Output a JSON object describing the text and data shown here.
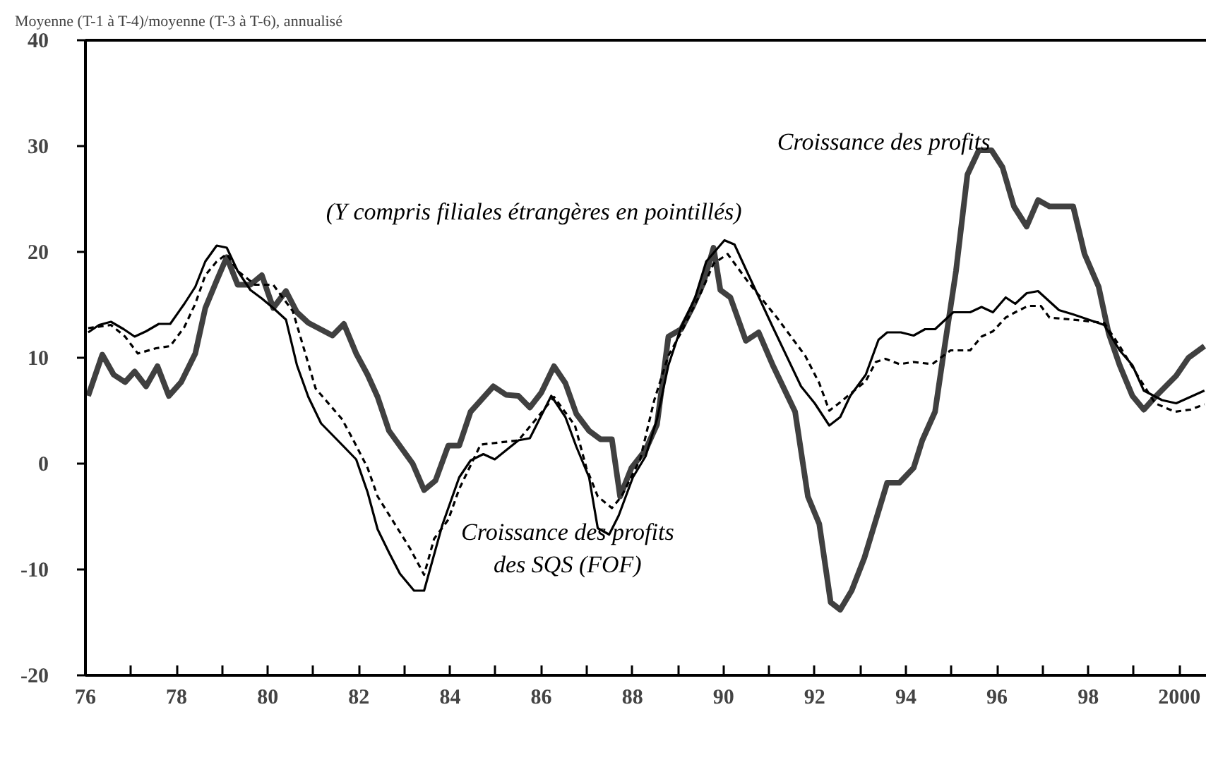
{
  "chart_data": {
    "type": "line",
    "title": "Moyenne (T-1 à T-4)/moyenne (T-3 à T-6), annualisé",
    "xlim": [
      1976,
      2000.6
    ],
    "ylim": [
      -20,
      40
    ],
    "xticks": [
      {
        "value": 1976,
        "label": "76"
      },
      {
        "value": 1977,
        "label": null
      },
      {
        "value": 1978,
        "label": "78"
      },
      {
        "value": 1979,
        "label": null
      },
      {
        "value": 1980,
        "label": "80"
      },
      {
        "value": 1981,
        "label": null
      },
      {
        "value": 1982,
        "label": "82"
      },
      {
        "value": 1983,
        "label": null
      },
      {
        "value": 1984,
        "label": "84"
      },
      {
        "value": 1985,
        "label": null
      },
      {
        "value": 1986,
        "label": "86"
      },
      {
        "value": 1987,
        "label": null
      },
      {
        "value": 1988,
        "label": "88"
      },
      {
        "value": 1989,
        "label": null
      },
      {
        "value": 1990,
        "label": "90"
      },
      {
        "value": 1991,
        "label": null
      },
      {
        "value": 1992,
        "label": "92"
      },
      {
        "value": 1993,
        "label": null
      },
      {
        "value": 1994,
        "label": "94"
      },
      {
        "value": 1995,
        "label": null
      },
      {
        "value": 1996,
        "label": "96"
      },
      {
        "value": 1997,
        "label": null
      },
      {
        "value": 1998,
        "label": "98"
      },
      {
        "value": 1999,
        "label": null
      },
      2000
    ],
    "yticks": [
      -20,
      -10,
      0,
      10,
      20,
      30,
      40
    ],
    "grid": false,
    "annotations": [
      "Croissance des profits",
      "(Y compris filiales étrangères en pointillés)",
      "Croissance des profits\ndes SQS (FOF)"
    ],
    "series": [
      {
        "color": "#404040",
        "line_style": "solid",
        "x": [
          1976.06,
          1976.37,
          1976.62,
          1976.87,
          1977.08,
          1977.33,
          1977.58,
          1977.83,
          1978.1,
          1978.41,
          1978.63,
          1978.88,
          1979.1,
          1979.34,
          1979.62,
          1979.87,
          1980.12,
          1980.4,
          1980.64,
          1980.89,
          1981.42,
          1981.67,
          1981.94,
          1982.19,
          1982.41,
          1982.66,
          1983.18,
          1983.43,
          1983.68,
          1983.96,
          1984.2,
          1984.45,
          1984.95,
          1985.23,
          1985.5,
          1985.75,
          1986.0,
          1986.28,
          1986.53,
          1986.77,
          1987.05,
          1987.3,
          1987.55,
          1987.73,
          1987.98,
          1988.29,
          1988.54,
          1988.79,
          1989.07,
          1989.31,
          1989.56,
          1989.78,
          1989.93,
          1990.15,
          1990.49,
          1990.77,
          1991.08,
          1991.57,
          1991.85,
          1992.1,
          1992.35,
          1992.56,
          1992.81,
          1993.09,
          1993.59,
          1993.86,
          1994.17,
          1994.36,
          1994.64,
          1994.82,
          1995.1,
          1995.35,
          1995.6,
          1995.88,
          1996.12,
          1996.37,
          1996.65,
          1996.9,
          1997.15,
          1997.67,
          1997.92,
          1998.23,
          1998.45,
          1998.69,
          1998.97,
          1999.22,
          1999.47,
          1999.93,
          2000.2,
          2000.55
        ],
        "values": [
          6.4,
          10.3,
          8.4,
          7.7,
          8.7,
          7.3,
          9.2,
          6.4,
          7.7,
          10.4,
          14.7,
          17.3,
          19.5,
          16.9,
          16.9,
          17.8,
          14.7,
          16.3,
          14.3,
          13.3,
          12.1,
          13.2,
          10.4,
          8.4,
          6.3,
          3.1,
          0,
          -2.5,
          -1.6,
          1.7,
          1.7,
          4.9,
          7.3,
          6.5,
          6.4,
          5.3,
          6.7,
          9.2,
          7.6,
          4.7,
          3.1,
          2.3,
          2.3,
          -3.1,
          -0.4,
          1.3,
          3.7,
          12,
          12.7,
          14.7,
          17.1,
          20.4,
          16.4,
          15.7,
          11.6,
          12.4,
          9.3,
          4.9,
          -3.1,
          -5.7,
          -13.1,
          -13.8,
          -12,
          -8.9,
          -1.8,
          -1.8,
          -0.4,
          2.2,
          4.9,
          10.2,
          18.2,
          27.3,
          29.6,
          29.6,
          28,
          24.3,
          22.4,
          24.9,
          24.3,
          24.3,
          19.8,
          16.7,
          12.3,
          9.3,
          6.4,
          5.1,
          6.3,
          8.3,
          10,
          11.1
        ]
      },
      {
        "color": "#000000",
        "line_style": "solid",
        "x": [
          1976.06,
          1976.3,
          1976.56,
          1976.84,
          1977.08,
          1977.33,
          1977.61,
          1977.86,
          1978.17,
          1978.41,
          1978.63,
          1978.88,
          1979.1,
          1979.34,
          1979.62,
          1979.87,
          1980.12,
          1980.4,
          1980.64,
          1980.89,
          1981.17,
          1981.67,
          1981.94,
          1982.19,
          1982.41,
          1982.66,
          1982.9,
          1983.21,
          1983.43,
          1983.83,
          1984.2,
          1984.45,
          1984.73,
          1984.98,
          1985.5,
          1985.75,
          1986.22,
          1986.53,
          1986.77,
          1987.05,
          1987.24,
          1987.49,
          1987.7,
          1988.01,
          1988.29,
          1988.54,
          1988.79,
          1989.07,
          1989.37,
          1989.62,
          1990.02,
          1990.24,
          1990.55,
          1991.08,
          1991.7,
          1992.0,
          1992.32,
          1992.56,
          1992.78,
          1993.12,
          1993.4,
          1993.59,
          1993.89,
          1994.17,
          1994.42,
          1994.64,
          1995.04,
          1995.41,
          1995.66,
          1995.91,
          1996.19,
          1996.4,
          1996.65,
          1996.9,
          1997.36,
          1997.67,
          1998.35,
          1998.69,
          1998.97,
          1999.22,
          1999.62,
          1999.93,
          2000.24,
          2000.55
        ],
        "values": [
          12.4,
          13.1,
          13.4,
          12.7,
          12,
          12.5,
          13.2,
          13.2,
          15.1,
          16.7,
          19.1,
          20.6,
          20.4,
          18.2,
          16.4,
          15.6,
          14.7,
          13.6,
          9.3,
          6.3,
          3.8,
          1.6,
          0.4,
          -2.7,
          -6.2,
          -8.4,
          -10.4,
          -12,
          -12,
          -5.8,
          -1.3,
          0.3,
          0.9,
          0.4,
          2.2,
          2.4,
          6.4,
          4.4,
          1.6,
          -1.3,
          -6.1,
          -6.7,
          -4.9,
          -1.3,
          0.7,
          4.2,
          9.3,
          12.9,
          15.6,
          19.1,
          21.1,
          20.7,
          17.8,
          12.9,
          7.3,
          5.7,
          3.6,
          4.4,
          6.4,
          8.4,
          11.7,
          12.4,
          12.4,
          12.1,
          12.7,
          12.7,
          14.3,
          14.3,
          14.8,
          14.3,
          15.7,
          15.1,
          16.1,
          16.3,
          14.5,
          14.1,
          13.1,
          10.7,
          9.3,
          6.9,
          6,
          5.7,
          6.3,
          6.9
        ]
      },
      {
        "color": "#000000",
        "line_style": "dashed",
        "x": [
          1976.06,
          1976.56,
          1976.87,
          1977.15,
          1977.55,
          1977.86,
          1978.17,
          1978.41,
          1978.63,
          1978.88,
          1979.1,
          1979.34,
          1979.72,
          1980.12,
          1980.55,
          1980.77,
          1981.05,
          1981.63,
          1981.88,
          1982.19,
          1982.41,
          1983.12,
          1983.43,
          1983.65,
          1983.96,
          1984.2,
          1984.67,
          1985.5,
          1986.0,
          1986.28,
          1986.74,
          1986.99,
          1987.24,
          1987.55,
          1987.76,
          1988.17,
          1988.48,
          1988.79,
          1989.07,
          1989.53,
          1989.78,
          1990.09,
          1990.55,
          1991.17,
          1991.79,
          1992.1,
          1992.32,
          1992.56,
          1993.12,
          1993.34,
          1993.55,
          1993.86,
          1994.17,
          1994.58,
          1994.98,
          1995.41,
          1995.66,
          1995.91,
          1996.19,
          1996.4,
          1996.68,
          1996.96,
          1997.15,
          1997.67,
          1998.35,
          1998.69,
          1999.13,
          1999.47,
          1999.9,
          2000.24,
          2000.55
        ],
        "values": [
          12.8,
          13.1,
          12,
          10.4,
          10.9,
          11.1,
          12.9,
          15.1,
          17.8,
          19.1,
          19.8,
          18.2,
          16.9,
          16.9,
          14.4,
          11.2,
          7.1,
          4.2,
          2.2,
          -0.4,
          -3.1,
          -8,
          -10.5,
          -7.1,
          -5.3,
          -2.4,
          1.8,
          2.2,
          4.8,
          6.3,
          3.6,
          -0.4,
          -3.1,
          -4.2,
          -3.1,
          0.4,
          6,
          10.2,
          12.4,
          16.4,
          18.9,
          19.8,
          17.1,
          13.8,
          10.2,
          7.6,
          5,
          5.8,
          7.8,
          9.6,
          9.9,
          9.4,
          9.6,
          9.4,
          10.7,
          10.7,
          12,
          12.5,
          13.8,
          14.3,
          14.9,
          14.9,
          13.8,
          13.6,
          13.3,
          11.1,
          8,
          5.7,
          4.9,
          5.1,
          5.6
        ]
      }
    ]
  }
}
